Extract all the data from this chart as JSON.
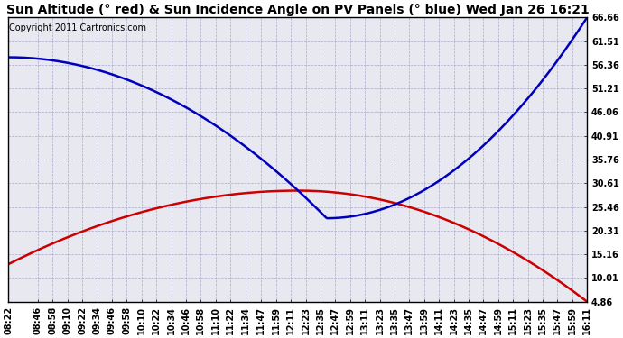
{
  "title": "Sun Altitude (° red) & Sun Incidence Angle on PV Panels (° blue) Wed Jan 26 16:21",
  "copyright": "Copyright 2011 Cartronics.com",
  "yticks": [
    4.86,
    10.01,
    15.16,
    20.31,
    25.46,
    30.61,
    35.76,
    40.91,
    46.06,
    51.21,
    56.36,
    61.51,
    66.66
  ],
  "ymin": 4.86,
  "ymax": 66.66,
  "background_color": "#ffffff",
  "plot_bg_color": "#e8e8f0",
  "grid_color": "#aaaacc",
  "red_color": "#cc0000",
  "blue_color": "#0000bb",
  "title_fontsize": 10,
  "tick_fontsize": 7,
  "copyright_fontsize": 7,
  "xtick_labels": [
    "08:22",
    "08:46",
    "08:58",
    "09:10",
    "09:22",
    "09:34",
    "09:46",
    "09:58",
    "10:10",
    "10:22",
    "10:34",
    "10:46",
    "10:58",
    "11:10",
    "11:22",
    "11:34",
    "11:47",
    "11:59",
    "12:11",
    "12:23",
    "12:35",
    "12:47",
    "12:59",
    "13:11",
    "13:23",
    "13:35",
    "13:47",
    "13:59",
    "14:11",
    "14:23",
    "14:35",
    "14:47",
    "14:59",
    "15:11",
    "15:23",
    "15:35",
    "15:47",
    "15:59",
    "16:11"
  ]
}
